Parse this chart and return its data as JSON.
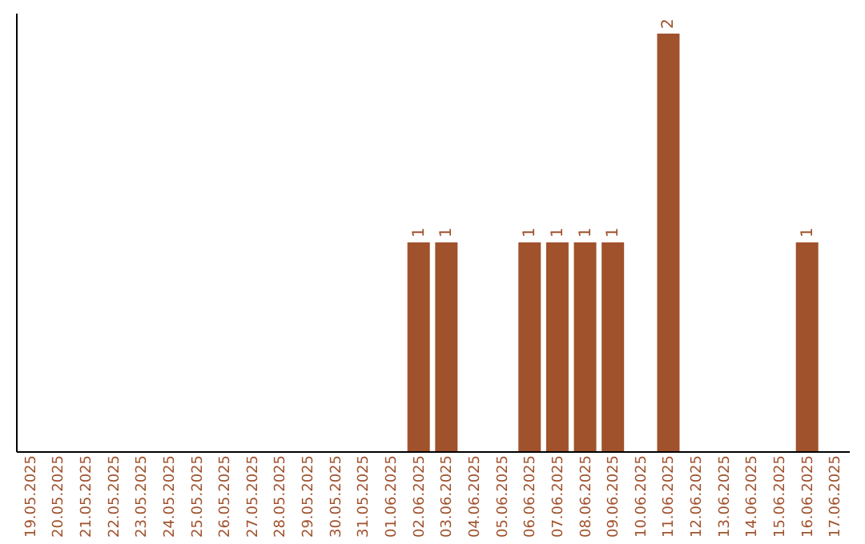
{
  "chart_data": {
    "type": "bar",
    "categories": [
      "19.05.2025",
      "20.05.2025",
      "21.05.2025",
      "22.05.2025",
      "23.05.2025",
      "24.05.2025",
      "25.05.2025",
      "26.05.2025",
      "27.05.2025",
      "28.05.2025",
      "29.05.2025",
      "30.05.2025",
      "31.05.2025",
      "01.06.2025",
      "02.06.2025",
      "03.06.2025",
      "04.06.2025",
      "05.06.2025",
      "06.06.2025",
      "07.06.2025",
      "08.06.2025",
      "09.06.2025",
      "10.06.2025",
      "11.06.2025",
      "12.06.2025",
      "13.06.2025",
      "14.06.2025",
      "15.06.2025",
      "16.06.2025",
      "17.06.2025"
    ],
    "values": [
      null,
      null,
      null,
      null,
      null,
      null,
      null,
      null,
      null,
      null,
      null,
      null,
      null,
      null,
      1,
      1,
      null,
      null,
      1,
      1,
      1,
      1,
      null,
      2,
      null,
      null,
      null,
      null,
      1,
      null
    ],
    "value_labels": [
      null,
      null,
      null,
      null,
      null,
      null,
      null,
      null,
      null,
      null,
      null,
      null,
      null,
      null,
      "1",
      "1",
      null,
      null,
      "1",
      "1",
      "1",
      "1",
      null,
      "2",
      null,
      null,
      null,
      null,
      "1",
      null
    ],
    "color": "#a0522d",
    "ylim": [
      0,
      2.1
    ],
    "tick_labels": "x",
    "grid": false
  }
}
